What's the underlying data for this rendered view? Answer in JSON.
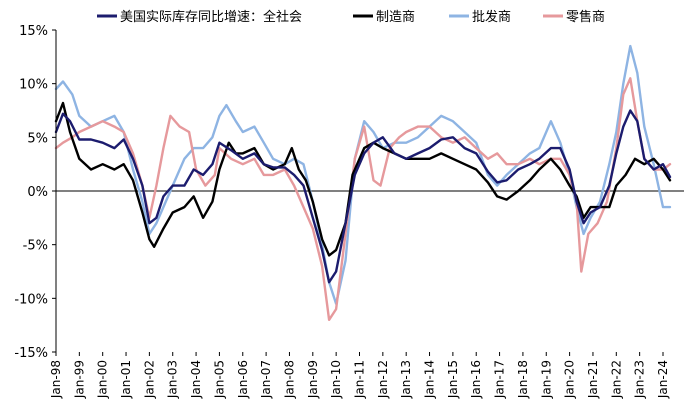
{
  "chart_data": {
    "type": "line",
    "title": "",
    "xlabel": "",
    "ylabel": "",
    "ylim": [
      -15,
      15
    ],
    "yticks": [
      -15,
      -10,
      -5,
      0,
      5,
      10,
      15
    ],
    "ytick_labels": [
      "-15%",
      "-10%",
      "-5%",
      "0%",
      "5%",
      "10%",
      "15%"
    ],
    "xlim": [
      1998,
      2024.9
    ],
    "xticks": [
      1998,
      1999,
      2000,
      2001,
      2002,
      2003,
      2004,
      2005,
      2006,
      2007,
      2008,
      2009,
      2010,
      2011,
      2012,
      2013,
      2014,
      2015,
      2016,
      2017,
      2018,
      2019,
      2020,
      2021,
      2022,
      2023,
      2024
    ],
    "xtick_labels": [
      "Jan-98",
      "Jan-99",
      "Jan-00",
      "Jan-01",
      "Jan-02",
      "Jan-03",
      "Jan-04",
      "Jan-05",
      "Jan-06",
      "Jan-07",
      "Jan-08",
      "Jan-09",
      "Jan-10",
      "Jan-11",
      "Jan-12",
      "Jan-13",
      "Jan-14",
      "Jan-15",
      "Jan-16",
      "Jan-17",
      "Jan-18",
      "Jan-19",
      "Jan-20",
      "Jan-21",
      "Jan-22",
      "Jan-23",
      "Jan-24"
    ],
    "legend_position": "top",
    "series": [
      {
        "name": "美国实际库存同比增速：全社会",
        "color": "#1c1c6e",
        "points": [
          [
            1998.0,
            5.5
          ],
          [
            1998.3,
            7.2
          ],
          [
            1998.6,
            6.5
          ],
          [
            1999.0,
            4.8
          ],
          [
            1999.5,
            4.8
          ],
          [
            2000.0,
            4.5
          ],
          [
            2000.5,
            4.0
          ],
          [
            2000.9,
            4.8
          ],
          [
            2001.3,
            3.0
          ],
          [
            2001.7,
            0.5
          ],
          [
            2002.0,
            -3.0
          ],
          [
            2002.3,
            -2.5
          ],
          [
            2002.6,
            -0.5
          ],
          [
            2003.0,
            0.5
          ],
          [
            2003.5,
            0.5
          ],
          [
            2003.9,
            2.0
          ],
          [
            2004.3,
            1.5
          ],
          [
            2004.7,
            2.5
          ],
          [
            2005.0,
            4.5
          ],
          [
            2005.5,
            3.8
          ],
          [
            2006.0,
            3.0
          ],
          [
            2006.5,
            3.5
          ],
          [
            2006.9,
            2.5
          ],
          [
            2007.3,
            2.2
          ],
          [
            2007.8,
            2.2
          ],
          [
            2008.2,
            1.5
          ],
          [
            2008.6,
            0.5
          ],
          [
            2009.0,
            -2.5
          ],
          [
            2009.4,
            -5.5
          ],
          [
            2009.7,
            -8.5
          ],
          [
            2010.0,
            -7.5
          ],
          [
            2010.4,
            -3.0
          ],
          [
            2010.8,
            1.5
          ],
          [
            2011.2,
            3.5
          ],
          [
            2011.6,
            4.5
          ],
          [
            2012.0,
            5.0
          ],
          [
            2012.5,
            3.5
          ],
          [
            2013.0,
            3.0
          ],
          [
            2013.5,
            3.5
          ],
          [
            2014.0,
            4.0
          ],
          [
            2014.5,
            4.8
          ],
          [
            2015.0,
            5.0
          ],
          [
            2015.5,
            4.0
          ],
          [
            2016.0,
            3.5
          ],
          [
            2016.5,
            1.8
          ],
          [
            2016.9,
            0.8
          ],
          [
            2017.3,
            1.0
          ],
          [
            2017.8,
            2.0
          ],
          [
            2018.3,
            2.5
          ],
          [
            2018.7,
            3.0
          ],
          [
            2019.2,
            4.0
          ],
          [
            2019.6,
            4.0
          ],
          [
            2020.0,
            2.0
          ],
          [
            2020.3,
            -1.0
          ],
          [
            2020.6,
            -3.0
          ],
          [
            2020.9,
            -2.0
          ],
          [
            2021.3,
            -1.5
          ],
          [
            2021.7,
            0.5
          ],
          [
            2022.0,
            3.5
          ],
          [
            2022.3,
            6.0
          ],
          [
            2022.6,
            7.5
          ],
          [
            2022.9,
            6.5
          ],
          [
            2023.2,
            3.0
          ],
          [
            2023.6,
            2.0
          ],
          [
            2024.0,
            2.5
          ],
          [
            2024.3,
            1.3
          ]
        ]
      },
      {
        "name": "制造商",
        "color": "#000000",
        "points": [
          [
            1998.0,
            6.5
          ],
          [
            1998.3,
            8.2
          ],
          [
            1998.6,
            5.5
          ],
          [
            1999.0,
            3.0
          ],
          [
            1999.5,
            2.0
          ],
          [
            2000.0,
            2.5
          ],
          [
            2000.5,
            2.0
          ],
          [
            2000.9,
            2.5
          ],
          [
            2001.3,
            1.0
          ],
          [
            2001.7,
            -2.0
          ],
          [
            2002.0,
            -4.5
          ],
          [
            2002.2,
            -5.2
          ],
          [
            2002.6,
            -3.5
          ],
          [
            2003.0,
            -2.0
          ],
          [
            2003.5,
            -1.5
          ],
          [
            2003.9,
            -0.5
          ],
          [
            2004.3,
            -2.5
          ],
          [
            2004.7,
            -1.0
          ],
          [
            2005.0,
            2.0
          ],
          [
            2005.4,
            4.5
          ],
          [
            2005.7,
            3.5
          ],
          [
            2006.0,
            3.5
          ],
          [
            2006.5,
            4.0
          ],
          [
            2006.9,
            2.5
          ],
          [
            2007.3,
            2.0
          ],
          [
            2007.8,
            2.5
          ],
          [
            2008.1,
            4.0
          ],
          [
            2008.4,
            2.0
          ],
          [
            2008.7,
            1.0
          ],
          [
            2009.0,
            -1.0
          ],
          [
            2009.4,
            -4.5
          ],
          [
            2009.7,
            -6.0
          ],
          [
            2010.0,
            -5.5
          ],
          [
            2010.4,
            -3.0
          ],
          [
            2010.7,
            1.5
          ],
          [
            2011.2,
            4.0
          ],
          [
            2011.6,
            4.5
          ],
          [
            2012.0,
            4.0
          ],
          [
            2012.5,
            3.5
          ],
          [
            2013.0,
            3.0
          ],
          [
            2013.5,
            3.0
          ],
          [
            2014.0,
            3.0
          ],
          [
            2014.5,
            3.5
          ],
          [
            2015.0,
            3.0
          ],
          [
            2015.5,
            2.5
          ],
          [
            2016.0,
            2.0
          ],
          [
            2016.5,
            0.8
          ],
          [
            2016.9,
            -0.5
          ],
          [
            2017.3,
            -0.8
          ],
          [
            2017.8,
            0.0
          ],
          [
            2018.3,
            1.0
          ],
          [
            2018.7,
            2.0
          ],
          [
            2019.2,
            3.0
          ],
          [
            2019.6,
            2.0
          ],
          [
            2020.0,
            0.5
          ],
          [
            2020.3,
            -0.5
          ],
          [
            2020.6,
            -2.5
          ],
          [
            2020.9,
            -1.5
          ],
          [
            2021.3,
            -1.5
          ],
          [
            2021.7,
            -1.5
          ],
          [
            2022.0,
            0.5
          ],
          [
            2022.4,
            1.5
          ],
          [
            2022.8,
            3.0
          ],
          [
            2023.2,
            2.5
          ],
          [
            2023.6,
            3.0
          ],
          [
            2024.0,
            2.0
          ],
          [
            2024.3,
            1.0
          ]
        ]
      },
      {
        "name": "批发商",
        "color": "#8eb4e3",
        "points": [
          [
            1998.0,
            9.5
          ],
          [
            1998.3,
            10.2
          ],
          [
            1998.7,
            9.0
          ],
          [
            1999.0,
            7.0
          ],
          [
            1999.5,
            6.0
          ],
          [
            2000.0,
            6.5
          ],
          [
            2000.5,
            7.0
          ],
          [
            2000.9,
            5.5
          ],
          [
            2001.3,
            2.0
          ],
          [
            2001.7,
            -1.0
          ],
          [
            2002.0,
            -4.0
          ],
          [
            2002.3,
            -3.0
          ],
          [
            2002.6,
            -1.5
          ],
          [
            2003.0,
            0.5
          ],
          [
            2003.5,
            3.0
          ],
          [
            2003.9,
            4.0
          ],
          [
            2004.3,
            4.0
          ],
          [
            2004.7,
            5.0
          ],
          [
            2005.0,
            7.0
          ],
          [
            2005.3,
            8.0
          ],
          [
            2005.7,
            6.5
          ],
          [
            2006.0,
            5.5
          ],
          [
            2006.5,
            6.0
          ],
          [
            2006.9,
            4.5
          ],
          [
            2007.3,
            3.0
          ],
          [
            2007.8,
            2.5
          ],
          [
            2008.2,
            3.0
          ],
          [
            2008.6,
            2.5
          ],
          [
            2009.0,
            -1.0
          ],
          [
            2009.4,
            -5.0
          ],
          [
            2009.7,
            -8.5
          ],
          [
            2010.0,
            -10.5
          ],
          [
            2010.4,
            -6.5
          ],
          [
            2010.8,
            3.0
          ],
          [
            2011.2,
            6.5
          ],
          [
            2011.6,
            5.5
          ],
          [
            2012.0,
            4.0
          ],
          [
            2012.5,
            4.5
          ],
          [
            2013.0,
            4.5
          ],
          [
            2013.5,
            5.0
          ],
          [
            2014.0,
            6.0
          ],
          [
            2014.5,
            7.0
          ],
          [
            2015.0,
            6.5
          ],
          [
            2015.5,
            5.5
          ],
          [
            2016.0,
            4.5
          ],
          [
            2016.5,
            1.5
          ],
          [
            2016.9,
            0.5
          ],
          [
            2017.3,
            1.5
          ],
          [
            2017.8,
            2.5
          ],
          [
            2018.3,
            3.5
          ],
          [
            2018.7,
            4.0
          ],
          [
            2019.2,
            6.5
          ],
          [
            2019.6,
            4.5
          ],
          [
            2020.0,
            1.5
          ],
          [
            2020.3,
            -1.5
          ],
          [
            2020.6,
            -4.0
          ],
          [
            2020.9,
            -2.5
          ],
          [
            2021.3,
            -1.0
          ],
          [
            2021.7,
            2.5
          ],
          [
            2022.0,
            5.5
          ],
          [
            2022.3,
            10.0
          ],
          [
            2022.6,
            13.5
          ],
          [
            2022.9,
            11.0
          ],
          [
            2023.2,
            6.0
          ],
          [
            2023.6,
            2.5
          ],
          [
            2024.0,
            -1.5
          ],
          [
            2024.3,
            -1.5
          ]
        ]
      },
      {
        "name": "零售商",
        "color": "#e6999c",
        "points": [
          [
            1998.0,
            4.0
          ],
          [
            1998.3,
            4.5
          ],
          [
            1998.7,
            5.0
          ],
          [
            1999.0,
            5.5
          ],
          [
            1999.5,
            6.0
          ],
          [
            2000.0,
            6.5
          ],
          [
            2000.5,
            6.0
          ],
          [
            2000.9,
            5.5
          ],
          [
            2001.3,
            3.5
          ],
          [
            2001.7,
            0.5
          ],
          [
            2002.0,
            -2.5
          ],
          [
            2002.3,
            0.5
          ],
          [
            2002.6,
            4.0
          ],
          [
            2002.9,
            7.0
          ],
          [
            2003.3,
            6.0
          ],
          [
            2003.7,
            5.5
          ],
          [
            2004.0,
            2.0
          ],
          [
            2004.4,
            0.5
          ],
          [
            2004.8,
            1.5
          ],
          [
            2005.0,
            4.0
          ],
          [
            2005.5,
            3.0
          ],
          [
            2006.0,
            2.5
          ],
          [
            2006.5,
            3.0
          ],
          [
            2006.9,
            1.5
          ],
          [
            2007.3,
            1.5
          ],
          [
            2007.8,
            2.0
          ],
          [
            2008.2,
            0.5
          ],
          [
            2008.6,
            -1.5
          ],
          [
            2009.0,
            -3.5
          ],
          [
            2009.4,
            -7.0
          ],
          [
            2009.7,
            -12.0
          ],
          [
            2010.0,
            -11.0
          ],
          [
            2010.4,
            -4.0
          ],
          [
            2010.8,
            3.0
          ],
          [
            2011.2,
            6.0
          ],
          [
            2011.6,
            1.0
          ],
          [
            2011.9,
            0.5
          ],
          [
            2012.3,
            4.0
          ],
          [
            2012.7,
            5.0
          ],
          [
            2013.0,
            5.5
          ],
          [
            2013.5,
            6.0
          ],
          [
            2014.0,
            6.0
          ],
          [
            2014.5,
            5.0
          ],
          [
            2015.0,
            4.5
          ],
          [
            2015.5,
            5.0
          ],
          [
            2016.0,
            4.0
          ],
          [
            2016.5,
            3.0
          ],
          [
            2016.9,
            3.5
          ],
          [
            2017.3,
            2.5
          ],
          [
            2017.8,
            2.5
          ],
          [
            2018.3,
            3.0
          ],
          [
            2018.7,
            2.5
          ],
          [
            2019.2,
            3.0
          ],
          [
            2019.6,
            3.0
          ],
          [
            2020.0,
            1.5
          ],
          [
            2020.3,
            -1.0
          ],
          [
            2020.5,
            -7.5
          ],
          [
            2020.8,
            -4.0
          ],
          [
            2021.2,
            -3.0
          ],
          [
            2021.6,
            -1.0
          ],
          [
            2022.0,
            4.0
          ],
          [
            2022.3,
            9.0
          ],
          [
            2022.6,
            10.5
          ],
          [
            2022.9,
            6.5
          ],
          [
            2023.2,
            3.0
          ],
          [
            2023.6,
            2.0
          ],
          [
            2024.0,
            2.0
          ],
          [
            2024.3,
            2.5
          ]
        ]
      }
    ]
  }
}
